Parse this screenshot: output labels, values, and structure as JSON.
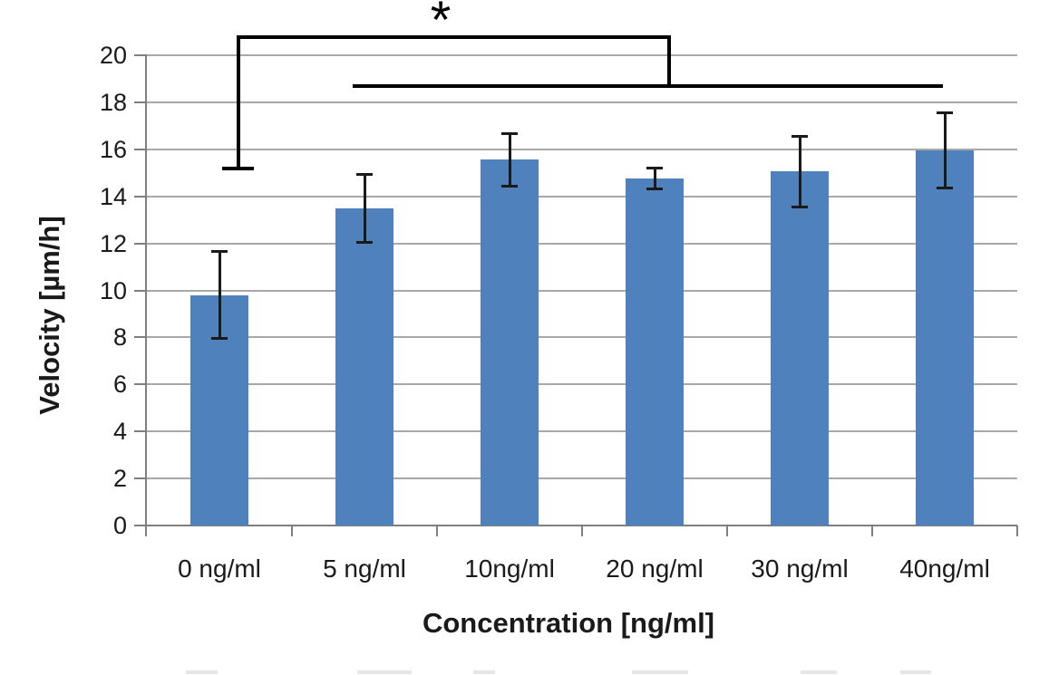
{
  "chart_data": {
    "type": "bar",
    "title": "",
    "categories": [
      "0 ng/ml",
      "5 ng/ml",
      "10ng/ml",
      "20 ng/ml",
      "30 ng/ml",
      "40ng/ml"
    ],
    "values": [
      9.8,
      13.5,
      15.55,
      14.75,
      15.05,
      15.95
    ],
    "errors": [
      1.85,
      1.45,
      1.1,
      0.45,
      1.5,
      1.6
    ],
    "xlabel": "Concentration [ng/ml]",
    "ylabel": "Velocity [µm/h]",
    "ylim": [
      0,
      20
    ],
    "yticks": [
      0,
      2,
      4,
      6,
      8,
      10,
      12,
      14,
      16,
      18,
      20
    ],
    "grid": true,
    "legend": "none",
    "colors": {
      "bar": "#4f81bd",
      "gridline": "#a8a8a8",
      "axis": "#7f7f7f",
      "error_bar": "#1a1a1a",
      "bracket": "#000000",
      "text": "#1a1a1a"
    },
    "significance": {
      "symbol": "*",
      "description": "bracket comparing 0 ng/ml against pooled 5-40 ng/ml bars",
      "bracket": {
        "top_y": 20.78,
        "left_category": 0.13,
        "left_drop_to_y": 15.2,
        "left_cap_halfwidth_categories": 0.11,
        "right_category": 3.1,
        "right_drop_to_y": 18.7,
        "underline_y": 18.7,
        "underline_from_category": 0.92,
        "underline_to_category": 4.99,
        "symbol_category": 1.525
      }
    },
    "bottom_edge_artifact": {
      "present": true,
      "description": "faint top edge of cropped-off text along the bottom image border (illegible)"
    }
  }
}
